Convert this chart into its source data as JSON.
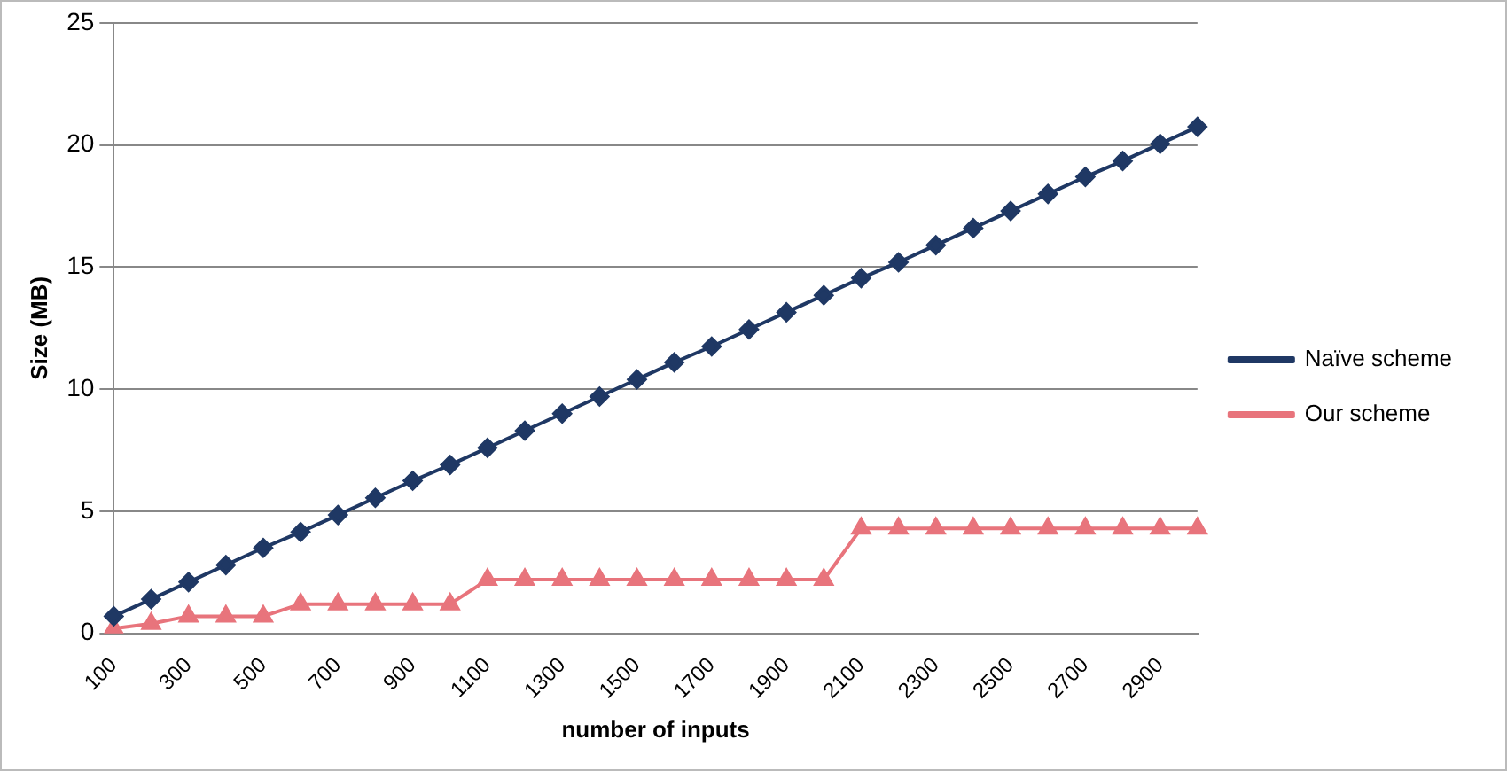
{
  "chart_data": {
    "type": "line",
    "xlabel": "number of inputs",
    "ylabel": "Size (MB)",
    "categories": [
      "100",
      null,
      "300",
      null,
      "500",
      null,
      "700",
      null,
      "900",
      null,
      "1100",
      null,
      "1300",
      null,
      "1500",
      null,
      "1700",
      null,
      "1900",
      null,
      "2100",
      null,
      "2300",
      null,
      "2500",
      null,
      "2700",
      null,
      "2900",
      null
    ],
    "series": [
      {
        "name": "Naïve scheme",
        "color": "#1f3864",
        "marker": "diamond",
        "values": [
          0.7,
          1.4,
          2.1,
          2.8,
          3.5,
          4.15,
          4.85,
          5.55,
          6.25,
          6.9,
          7.6,
          8.3,
          9.0,
          9.7,
          10.4,
          11.1,
          11.75,
          12.45,
          13.15,
          13.85,
          14.55,
          15.2,
          15.9,
          16.6,
          17.3,
          18.0,
          18.7,
          19.35,
          20.05,
          20.75
        ]
      },
      {
        "name": "Our scheme",
        "color": "#e8747c",
        "marker": "triangle",
        "values": [
          0.2,
          0.4,
          0.7,
          0.7,
          0.7,
          1.2,
          1.2,
          1.2,
          1.2,
          1.2,
          2.2,
          2.2,
          2.2,
          2.2,
          2.2,
          2.2,
          2.2,
          2.2,
          2.2,
          2.2,
          4.3,
          4.3,
          4.3,
          4.3,
          4.3,
          4.3,
          4.3,
          4.3,
          4.3,
          4.3
        ]
      }
    ],
    "ylim": [
      0,
      25
    ],
    "yticks": [
      0,
      5,
      10,
      15,
      20,
      25
    ],
    "grid": "y",
    "legend": "right",
    "line_style": "solid"
  }
}
